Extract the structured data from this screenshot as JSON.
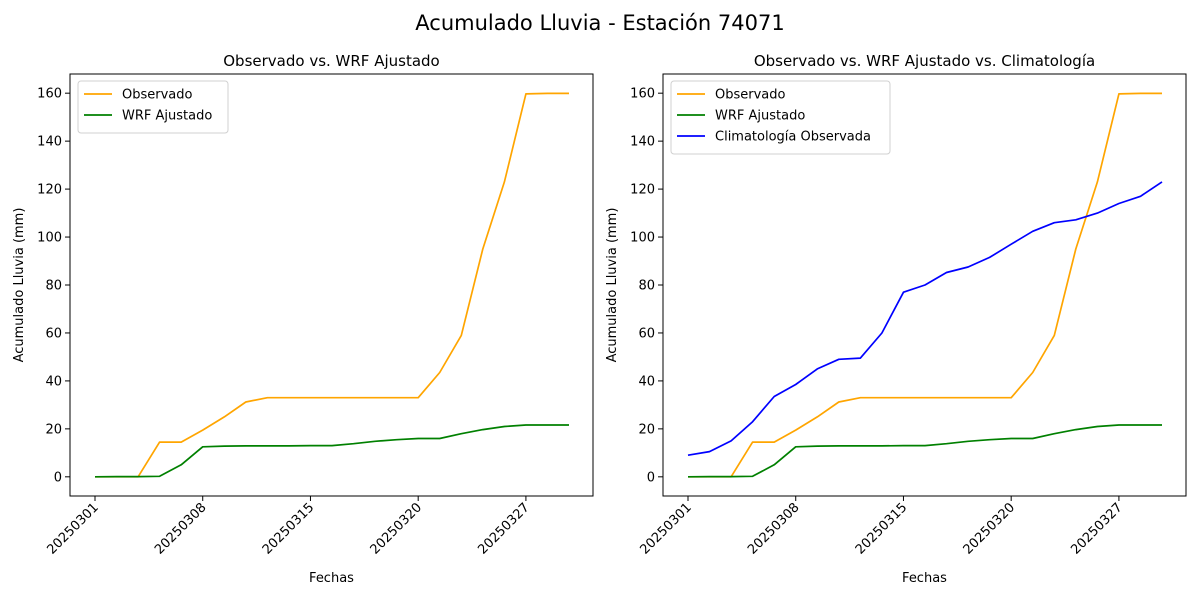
{
  "figure_title": "Acumulado Lluvia - Estación 74071",
  "colors": {
    "observado": "#ffa500",
    "wrf": "#008000",
    "clim": "#0000ff"
  },
  "chart_data": [
    {
      "type": "line",
      "title": "Observado vs. WRF Ajustado",
      "xlabel": "Fechas",
      "ylabel": "Acumulado Lluvia (mm)",
      "ylim": [
        -8,
        168
      ],
      "yticks": [
        0,
        20,
        40,
        60,
        80,
        100,
        120,
        140,
        160
      ],
      "x_tick_labels": [
        "20250301",
        "20250308",
        "20250315",
        "20250320",
        "20250327"
      ],
      "x_tick_index": [
        0,
        5,
        10,
        15,
        20
      ],
      "legend": "top-left",
      "series": [
        {
          "name": "Observado",
          "color": "#ffa500",
          "values": [
            0,
            0,
            0,
            14.5,
            14.5,
            19.5,
            25,
            31.2,
            33,
            33,
            33,
            33,
            33,
            33,
            33,
            33,
            43.5,
            59,
            95,
            123,
            159.7,
            159.9,
            159.9
          ]
        },
        {
          "name": "WRF Ajustado",
          "color": "#008000",
          "values": [
            0,
            0.1,
            0.1,
            0.2,
            5,
            12.5,
            12.8,
            12.9,
            12.9,
            12.9,
            13,
            13,
            13.8,
            14.8,
            15.5,
            16,
            16,
            18,
            19.7,
            21,
            21.6,
            21.6,
            21.6
          ]
        }
      ]
    },
    {
      "type": "line",
      "title": "Observado vs. WRF Ajustado vs. Climatología",
      "xlabel": "Fechas",
      "ylabel": "Acumulado Lluvia (mm)",
      "ylim": [
        -8,
        168
      ],
      "yticks": [
        0,
        20,
        40,
        60,
        80,
        100,
        120,
        140,
        160
      ],
      "x_tick_labels": [
        "20250301",
        "20250308",
        "20250315",
        "20250320",
        "20250327"
      ],
      "x_tick_index": [
        0,
        5,
        10,
        15,
        20
      ],
      "legend": "top-left",
      "series": [
        {
          "name": "Observado",
          "color": "#ffa500",
          "values": [
            0,
            0,
            0,
            14.5,
            14.5,
            19.5,
            25,
            31.2,
            33,
            33,
            33,
            33,
            33,
            33,
            33,
            33,
            43.5,
            59,
            95,
            123,
            159.7,
            159.9,
            159.9
          ]
        },
        {
          "name": "WRF Ajustado",
          "color": "#008000",
          "values": [
            0,
            0.1,
            0.1,
            0.2,
            5,
            12.5,
            12.8,
            12.9,
            12.9,
            12.9,
            13,
            13,
            13.8,
            14.8,
            15.5,
            16,
            16,
            18,
            19.7,
            21,
            21.6,
            21.6,
            21.6
          ]
        },
        {
          "name": "Climatología Observada",
          "color": "#0000ff",
          "values": [
            9,
            10.5,
            15,
            23,
            33.5,
            38.5,
            45,
            49,
            49.5,
            60,
            77,
            80,
            85.2,
            87.5,
            91.5,
            97,
            102.4,
            106,
            107.2,
            110,
            114,
            117,
            123
          ]
        }
      ]
    }
  ]
}
